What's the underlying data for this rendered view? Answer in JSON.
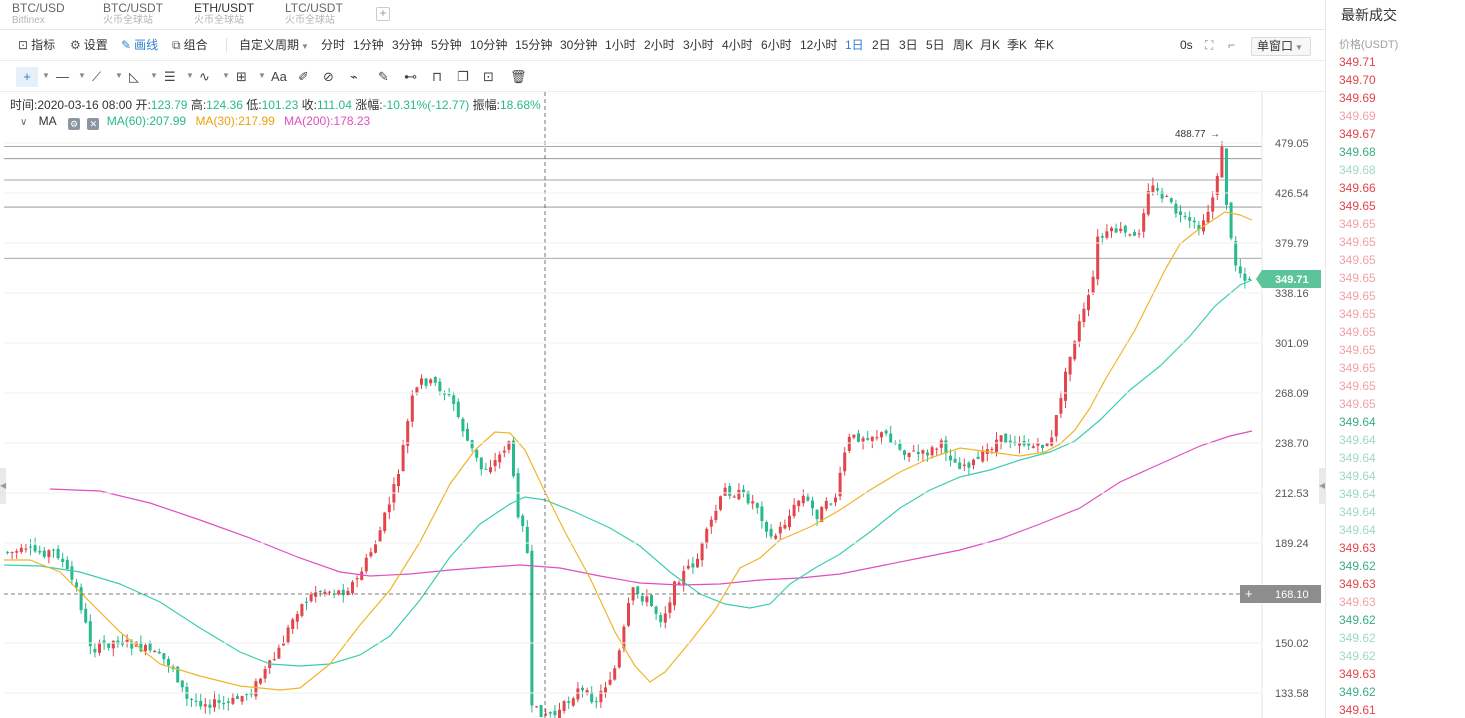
{
  "symbol_tabs": [
    {
      "name": "BTC/USD",
      "exchange": "Bitfinex",
      "active": false
    },
    {
      "name": "BTC/USDT",
      "exchange": "火币全球站",
      "active": false
    },
    {
      "name": "ETH/USDT",
      "exchange": "火币全球站",
      "active": true
    },
    {
      "name": "LTC/USDT",
      "exchange": "火币全球站",
      "active": false
    }
  ],
  "add_tab": "+",
  "toolbar": {
    "indicators": "指标",
    "settings": "设置",
    "draw": "画线",
    "combine": "组合",
    "custom_period": "自定义周期",
    "periods": [
      "分时",
      "1分钟",
      "3分钟",
      "5分钟",
      "10分钟",
      "15分钟",
      "30分钟",
      "1小时",
      "2小时",
      "3小时",
      "4小时",
      "6小时",
      "12小时",
      "1日",
      "2日",
      "3日",
      "5日",
      "周K",
      "月K",
      "季K",
      "年K"
    ],
    "active_period": "1日",
    "countdown": "0s",
    "window_mode": "单窗口"
  },
  "draw_tools": [
    "cursor-icon",
    "horizontal-line-icon",
    "trend-line-icon",
    "angle-icon",
    "fib-icon",
    "wave-icon",
    "grid-icon",
    "text-icon",
    "brush-icon",
    "magnet-icon",
    "ruler-icon",
    "pencil-icon",
    "pattern-icon",
    "lock-icon",
    "copy-icon",
    "screenshot-icon",
    "trash-icon"
  ],
  "info": {
    "time_label": "时间:",
    "time": "2020-03-16 08:00",
    "open_label": "开:",
    "open": "123.79",
    "high_label": "高:",
    "high": "124.36",
    "low_label": "低:",
    "low": "101.23",
    "close_label": "收:",
    "close": "111.04",
    "change_label": "涨幅:",
    "change": "-10.31%(-12.77)",
    "amplitude_label": "振幅:",
    "amplitude": "18.68%"
  },
  "ma": {
    "label": "MA",
    "ma60": "MA(60):207.99",
    "ma30": "MA(30):217.99",
    "ma200": "MA(200):178.23"
  },
  "colors": {
    "up": "#e2454b",
    "down": "#28b98f",
    "ma30": "#f0b429",
    "ma60": "#3ccdb0",
    "ma200": "#e04fbf",
    "last_price_bg": "#5cc39a",
    "crosshair_price_bg": "#8d8d8d"
  },
  "chart_data": {
    "type": "candlestick",
    "y_ticks": [
      479.05,
      426.54,
      379.79,
      338.16,
      301.09,
      268.09,
      238.7,
      212.53,
      189.24,
      150.02,
      133.58
    ],
    "last_price": "349.71",
    "crosshair_price": "168.10",
    "max_label": "488.77",
    "levels": [
      475.5,
      462.6,
      440.2,
      413.4,
      367.1
    ],
    "ma30": [
      [
        4,
        560
      ],
      [
        30,
        560
      ],
      [
        60,
        572
      ],
      [
        90,
        602
      ],
      [
        120,
        632
      ],
      [
        160,
        664
      ],
      [
        200,
        676
      ],
      [
        240,
        686
      ],
      [
        280,
        690
      ],
      [
        300,
        688
      ],
      [
        330,
        664
      ],
      [
        360,
        625
      ],
      [
        390,
        590
      ],
      [
        420,
        542
      ],
      [
        450,
        484
      ],
      [
        475,
        450
      ],
      [
        495,
        432
      ],
      [
        510,
        433
      ],
      [
        525,
        450
      ],
      [
        545,
        492
      ],
      [
        565,
        532
      ],
      [
        590,
        578
      ],
      [
        615,
        632
      ],
      [
        635,
        666
      ],
      [
        650,
        682
      ],
      [
        665,
        672
      ],
      [
        690,
        642
      ],
      [
        715,
        610
      ],
      [
        740,
        568
      ],
      [
        760,
        558
      ],
      [
        780,
        540
      ],
      [
        810,
        527
      ],
      [
        840,
        510
      ],
      [
        870,
        490
      ],
      [
        900,
        472
      ],
      [
        930,
        458
      ],
      [
        960,
        448
      ],
      [
        990,
        452
      ],
      [
        1020,
        456
      ],
      [
        1045,
        452
      ],
      [
        1060,
        444
      ],
      [
        1075,
        430
      ],
      [
        1090,
        408
      ],
      [
        1105,
        380
      ],
      [
        1120,
        355
      ],
      [
        1135,
        330
      ],
      [
        1150,
        300
      ],
      [
        1165,
        270
      ],
      [
        1180,
        244
      ],
      [
        1195,
        232
      ],
      [
        1210,
        222
      ],
      [
        1225,
        212
      ],
      [
        1240,
        215
      ],
      [
        1252,
        220
      ]
    ],
    "ma60": [
      [
        4,
        565
      ],
      [
        40,
        566
      ],
      [
        80,
        572
      ],
      [
        120,
        584
      ],
      [
        160,
        602
      ],
      [
        200,
        628
      ],
      [
        240,
        652
      ],
      [
        270,
        664
      ],
      [
        300,
        666
      ],
      [
        330,
        664
      ],
      [
        360,
        655
      ],
      [
        390,
        636
      ],
      [
        420,
        600
      ],
      [
        450,
        557
      ],
      [
        480,
        524
      ],
      [
        510,
        504
      ],
      [
        525,
        497
      ],
      [
        545,
        500
      ],
      [
        575,
        512
      ],
      [
        610,
        528
      ],
      [
        640,
        546
      ],
      [
        670,
        572
      ],
      [
        700,
        594
      ],
      [
        725,
        604
      ],
      [
        750,
        608
      ],
      [
        770,
        604
      ],
      [
        790,
        584
      ],
      [
        815,
        568
      ],
      [
        840,
        554
      ],
      [
        870,
        532
      ],
      [
        900,
        508
      ],
      [
        930,
        490
      ],
      [
        960,
        477
      ],
      [
        990,
        470
      ],
      [
        1020,
        460
      ],
      [
        1050,
        452
      ],
      [
        1075,
        441
      ],
      [
        1100,
        420
      ],
      [
        1130,
        390
      ],
      [
        1160,
        366
      ],
      [
        1190,
        336
      ],
      [
        1215,
        306
      ],
      [
        1240,
        285
      ],
      [
        1252,
        280
      ]
    ],
    "ma200": [
      [
        50,
        489
      ],
      [
        100,
        491
      ],
      [
        150,
        503
      ],
      [
        200,
        520
      ],
      [
        250,
        538
      ],
      [
        300,
        558
      ],
      [
        340,
        572
      ],
      [
        370,
        576
      ],
      [
        410,
        574
      ],
      [
        450,
        570
      ],
      [
        490,
        567
      ],
      [
        520,
        565
      ],
      [
        560,
        568
      ],
      [
        600,
        576
      ],
      [
        640,
        583
      ],
      [
        680,
        585
      ],
      [
        720,
        584
      ],
      [
        760,
        580
      ],
      [
        800,
        578
      ],
      [
        840,
        574
      ],
      [
        880,
        566
      ],
      [
        920,
        558
      ],
      [
        960,
        550
      ],
      [
        1000,
        539
      ],
      [
        1040,
        524
      ],
      [
        1080,
        508
      ],
      [
        1120,
        482
      ],
      [
        1160,
        464
      ],
      [
        1200,
        446
      ],
      [
        1230,
        436
      ],
      [
        1252,
        431
      ]
    ]
  },
  "trade_panel": {
    "title": "最新成交",
    "price_header": "价格(USDT)",
    "rows": [
      {
        "price": "349.71",
        "dir": "up",
        "faded": false
      },
      {
        "price": "349.70",
        "dir": "up",
        "faded": false
      },
      {
        "price": "349.69",
        "dir": "up",
        "faded": false
      },
      {
        "price": "349.69",
        "dir": "up",
        "faded": true
      },
      {
        "price": "349.67",
        "dir": "up",
        "faded": false
      },
      {
        "price": "349.68",
        "dir": "down",
        "faded": false
      },
      {
        "price": "349.68",
        "dir": "down",
        "faded": true
      },
      {
        "price": "349.66",
        "dir": "up",
        "faded": false
      },
      {
        "price": "349.65",
        "dir": "up",
        "faded": false
      },
      {
        "price": "349.65",
        "dir": "up",
        "faded": true
      },
      {
        "price": "349.65",
        "dir": "up",
        "faded": true
      },
      {
        "price": "349.65",
        "dir": "up",
        "faded": true
      },
      {
        "price": "349.65",
        "dir": "up",
        "faded": true
      },
      {
        "price": "349.65",
        "dir": "up",
        "faded": true
      },
      {
        "price": "349.65",
        "dir": "up",
        "faded": true
      },
      {
        "price": "349.65",
        "dir": "up",
        "faded": true
      },
      {
        "price": "349.65",
        "dir": "up",
        "faded": true
      },
      {
        "price": "349.65",
        "dir": "up",
        "faded": true
      },
      {
        "price": "349.65",
        "dir": "up",
        "faded": true
      },
      {
        "price": "349.65",
        "dir": "up",
        "faded": true
      },
      {
        "price": "349.64",
        "dir": "down",
        "faded": false
      },
      {
        "price": "349.64",
        "dir": "down",
        "faded": true
      },
      {
        "price": "349.64",
        "dir": "down",
        "faded": true
      },
      {
        "price": "349.64",
        "dir": "down",
        "faded": true
      },
      {
        "price": "349.64",
        "dir": "down",
        "faded": true
      },
      {
        "price": "349.64",
        "dir": "down",
        "faded": true
      },
      {
        "price": "349.64",
        "dir": "down",
        "faded": true
      },
      {
        "price": "349.63",
        "dir": "up",
        "faded": false
      },
      {
        "price": "349.62",
        "dir": "down",
        "faded": false
      },
      {
        "price": "349.63",
        "dir": "up",
        "faded": false
      },
      {
        "price": "349.63",
        "dir": "up",
        "faded": true
      },
      {
        "price": "349.62",
        "dir": "down",
        "faded": false
      },
      {
        "price": "349.62",
        "dir": "down",
        "faded": true
      },
      {
        "price": "349.62",
        "dir": "down",
        "faded": true
      },
      {
        "price": "349.63",
        "dir": "up",
        "faded": false
      },
      {
        "price": "349.62",
        "dir": "down",
        "faded": false
      },
      {
        "price": "349.61",
        "dir": "up",
        "faded": false
      }
    ]
  }
}
